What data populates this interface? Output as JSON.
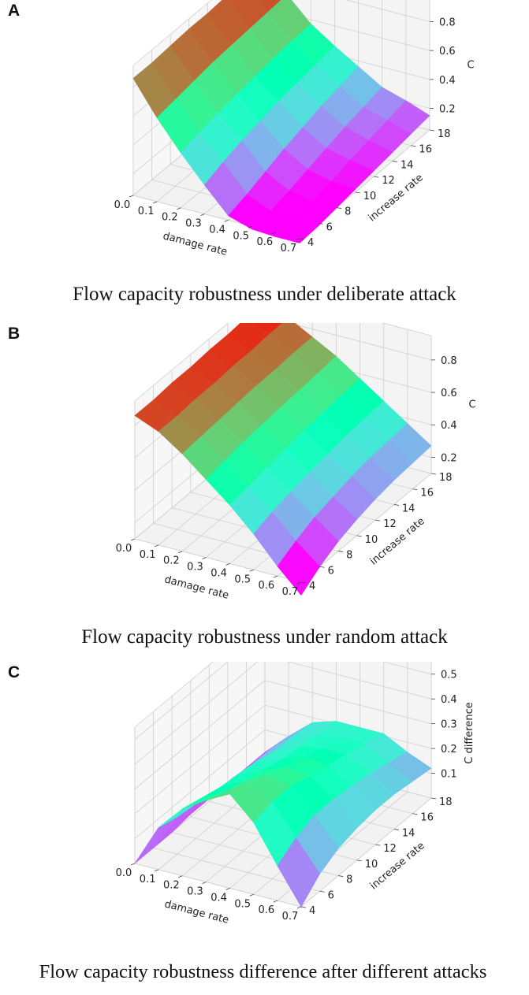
{
  "chart_data": [
    {
      "panel": "A",
      "type": "surface3d",
      "title": "Flow capacity robustness under deliberate attack",
      "xlabel": "damage rate",
      "ylabel": "increase rate",
      "zlabel": "C",
      "xticks": [
        "0.0",
        "0.1",
        "0.2",
        "0.3",
        "0.4",
        "0.5",
        "0.6",
        "0.7"
      ],
      "yticks": [
        "4",
        "6",
        "8",
        "10",
        "12",
        "14",
        "16",
        "18"
      ],
      "zticks": [
        "0.2",
        "0.4",
        "0.6",
        "0.8"
      ],
      "xlim": [
        0,
        0.7
      ],
      "ylim": [
        4,
        18
      ],
      "zlim": [
        0.05,
        0.95
      ],
      "colormap": "rainbow",
      "x": [
        0.0,
        0.1,
        0.2,
        0.3,
        0.4,
        0.5,
        0.6,
        0.7
      ],
      "y": [
        4,
        6,
        8,
        10,
        12,
        14,
        16,
        18
      ],
      "z": [
        [
          0.86,
          0.63,
          0.43,
          0.25,
          0.08,
          0.03,
          0.02,
          0.02
        ],
        [
          0.86,
          0.65,
          0.46,
          0.3,
          0.12,
          0.05,
          0.03,
          0.03
        ],
        [
          0.87,
          0.67,
          0.49,
          0.34,
          0.17,
          0.08,
          0.05,
          0.05
        ],
        [
          0.88,
          0.69,
          0.51,
          0.37,
          0.22,
          0.12,
          0.08,
          0.07
        ],
        [
          0.88,
          0.7,
          0.53,
          0.4,
          0.26,
          0.16,
          0.12,
          0.09
        ],
        [
          0.89,
          0.71,
          0.55,
          0.42,
          0.3,
          0.2,
          0.15,
          0.11
        ],
        [
          0.89,
          0.72,
          0.56,
          0.44,
          0.33,
          0.23,
          0.18,
          0.13
        ],
        [
          0.9,
          0.73,
          0.57,
          0.46,
          0.36,
          0.26,
          0.21,
          0.15
        ]
      ]
    },
    {
      "panel": "B",
      "type": "surface3d",
      "title": "Flow capacity robustness under random attack",
      "xlabel": "damage rate",
      "ylabel": "increase rate",
      "zlabel": "C",
      "xticks": [
        "0.0",
        "0.1",
        "0.2",
        "0.3",
        "0.4",
        "0.5",
        "0.6",
        "0.7"
      ],
      "yticks": [
        "4",
        "6",
        "8",
        "10",
        "12",
        "14",
        "16",
        "18"
      ],
      "zticks": [
        "0.2",
        "0.4",
        "0.6",
        "0.8"
      ],
      "xlim": [
        0,
        0.7
      ],
      "ylim": [
        4,
        18
      ],
      "zlim": [
        0.1,
        0.95
      ],
      "colormap": "rainbow",
      "x": [
        0.0,
        0.1,
        0.2,
        0.3,
        0.4,
        0.5,
        0.6,
        0.7
      ],
      "y": [
        4,
        6,
        8,
        10,
        12,
        14,
        16,
        18
      ],
      "z": [
        [
          0.86,
          0.8,
          0.7,
          0.58,
          0.46,
          0.32,
          0.16,
          0.02
        ],
        [
          0.86,
          0.8,
          0.71,
          0.6,
          0.48,
          0.36,
          0.22,
          0.1
        ],
        [
          0.87,
          0.81,
          0.72,
          0.62,
          0.5,
          0.39,
          0.27,
          0.16
        ],
        [
          0.87,
          0.81,
          0.73,
          0.63,
          0.52,
          0.41,
          0.3,
          0.2
        ],
        [
          0.88,
          0.82,
          0.74,
          0.64,
          0.54,
          0.43,
          0.33,
          0.23
        ],
        [
          0.88,
          0.82,
          0.74,
          0.65,
          0.55,
          0.45,
          0.35,
          0.25
        ],
        [
          0.89,
          0.83,
          0.75,
          0.66,
          0.56,
          0.46,
          0.36,
          0.26
        ],
        [
          0.89,
          0.83,
          0.75,
          0.67,
          0.57,
          0.47,
          0.37,
          0.27
        ]
      ]
    },
    {
      "panel": "C",
      "type": "surface3d",
      "title": "Flow capacity robustness difference after different attacks",
      "xlabel": "damage rate",
      "ylabel": "increase rate",
      "zlabel": "C difference",
      "xticks": [
        "0.0",
        "0.1",
        "0.2",
        "0.3",
        "0.4",
        "0.5",
        "0.6",
        "0.7"
      ],
      "yticks": [
        "4",
        "6",
        "8",
        "10",
        "12",
        "14",
        "16",
        "18"
      ],
      "zticks": [
        "0.1",
        "0.2",
        "0.3",
        "0.4",
        "0.5"
      ],
      "xlim": [
        0,
        0.7
      ],
      "ylim": [
        4,
        18
      ],
      "zlim": [
        0.0,
        0.55
      ],
      "colormap": "rainbow",
      "x": [
        0.0,
        0.1,
        0.2,
        0.3,
        0.4,
        0.5,
        0.6,
        0.7
      ],
      "y": [
        4,
        6,
        8,
        10,
        12,
        14,
        16,
        18
      ],
      "z": [
        [
          0.0,
          0.17,
          0.27,
          0.33,
          0.38,
          0.29,
          0.14,
          0.0
        ],
        [
          0.0,
          0.15,
          0.25,
          0.3,
          0.36,
          0.31,
          0.19,
          0.07
        ],
        [
          0.0,
          0.14,
          0.23,
          0.28,
          0.33,
          0.31,
          0.22,
          0.11
        ],
        [
          0.01,
          0.12,
          0.22,
          0.26,
          0.3,
          0.29,
          0.22,
          0.13
        ],
        [
          0.01,
          0.12,
          0.21,
          0.24,
          0.28,
          0.27,
          0.21,
          0.14
        ],
        [
          0.01,
          0.11,
          0.19,
          0.23,
          0.25,
          0.25,
          0.2,
          0.14
        ],
        [
          0.01,
          0.11,
          0.19,
          0.22,
          0.23,
          0.23,
          0.18,
          0.13
        ],
        [
          0.01,
          0.1,
          0.18,
          0.21,
          0.21,
          0.21,
          0.16,
          0.12
        ]
      ]
    }
  ]
}
